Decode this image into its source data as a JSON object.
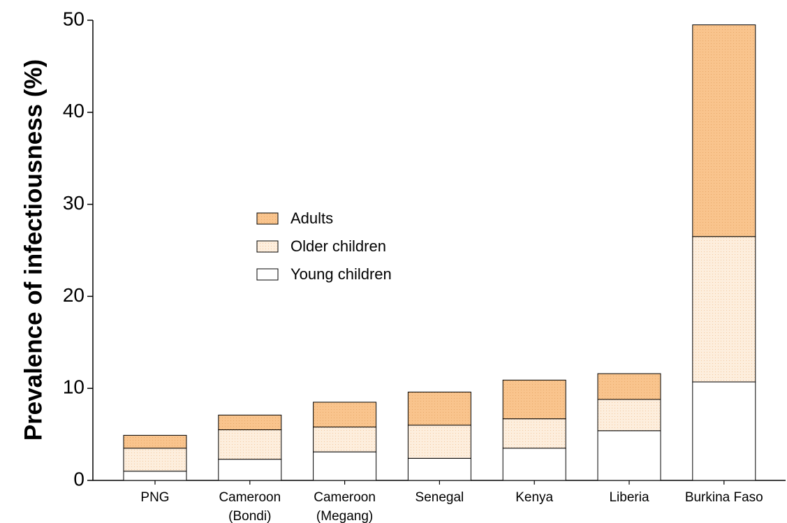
{
  "chart_data": {
    "type": "bar",
    "stacked": true,
    "title": "",
    "xlabel": "",
    "ylabel": "Prevalence of infectiousness (%)",
    "ylim": [
      0,
      50
    ],
    "yticks": [
      "0",
      "10",
      "20",
      "30",
      "40",
      "50"
    ],
    "grid": false,
    "legend_position": "center-left",
    "categories": [
      [
        "PNG"
      ],
      [
        "Cameroon",
        "(Bondi)"
      ],
      [
        "Cameroon",
        "(Megang)"
      ],
      [
        "Senegal"
      ],
      [
        "Kenya"
      ],
      [
        "Liberia"
      ],
      [
        "Burkina Faso"
      ]
    ],
    "series": [
      {
        "name": "Young children",
        "color": "#ffffff",
        "values": [
          1.0,
          2.3,
          3.1,
          2.4,
          3.5,
          5.4,
          10.7
        ]
      },
      {
        "name": "Older children",
        "color": "#fce6cf",
        "values": [
          2.5,
          3.2,
          2.7,
          3.6,
          3.2,
          3.4,
          15.8
        ]
      },
      {
        "name": "Adults",
        "color": "#f9c48d",
        "values": [
          1.4,
          1.6,
          2.7,
          3.6,
          4.2,
          2.8,
          23.0
        ]
      }
    ],
    "legend_order": [
      "Adults",
      "Older children",
      "Young children"
    ]
  }
}
